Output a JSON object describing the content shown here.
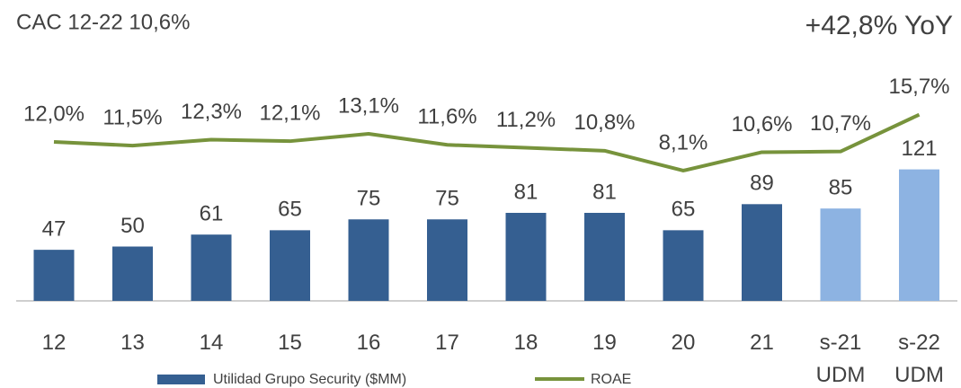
{
  "chart_data": {
    "type": "combo",
    "annotations": [
      "CAC 12-22 10,6%",
      "+42,8% YoY"
    ],
    "categories": [
      "12",
      "13",
      "14",
      "15",
      "16",
      "17",
      "18",
      "19",
      "20",
      "21",
      "s-21\nUDM",
      "s-22\nUDM"
    ],
    "series": [
      {
        "name": "Utilidad Grupo Security ($MM)",
        "type": "bar",
        "color": "#355f91",
        "colors": [
          "#355f91",
          "#355f91",
          "#355f91",
          "#355f91",
          "#355f91",
          "#355f91",
          "#355f91",
          "#355f91",
          "#355f91",
          "#355f91",
          "#8db3e2",
          "#8db3e2"
        ],
        "values": [
          47,
          50,
          61,
          65,
          75,
          75,
          81,
          81,
          65,
          89,
          85,
          121
        ]
      },
      {
        "name": "ROAE",
        "type": "line",
        "color": "#77933c",
        "values": [
          12.0,
          11.5,
          12.3,
          12.1,
          13.1,
          11.6,
          11.2,
          10.8,
          8.1,
          10.6,
          10.7,
          15.7
        ],
        "value_labels": [
          "12,0%",
          "11,5%",
          "12,3%",
          "12,1%",
          "13,1%",
          "11,6%",
          "11,2%",
          "10,8%",
          "8,1%",
          "10,6%",
          "10,7%",
          "15,7%"
        ]
      }
    ],
    "legend": "bottom"
  }
}
